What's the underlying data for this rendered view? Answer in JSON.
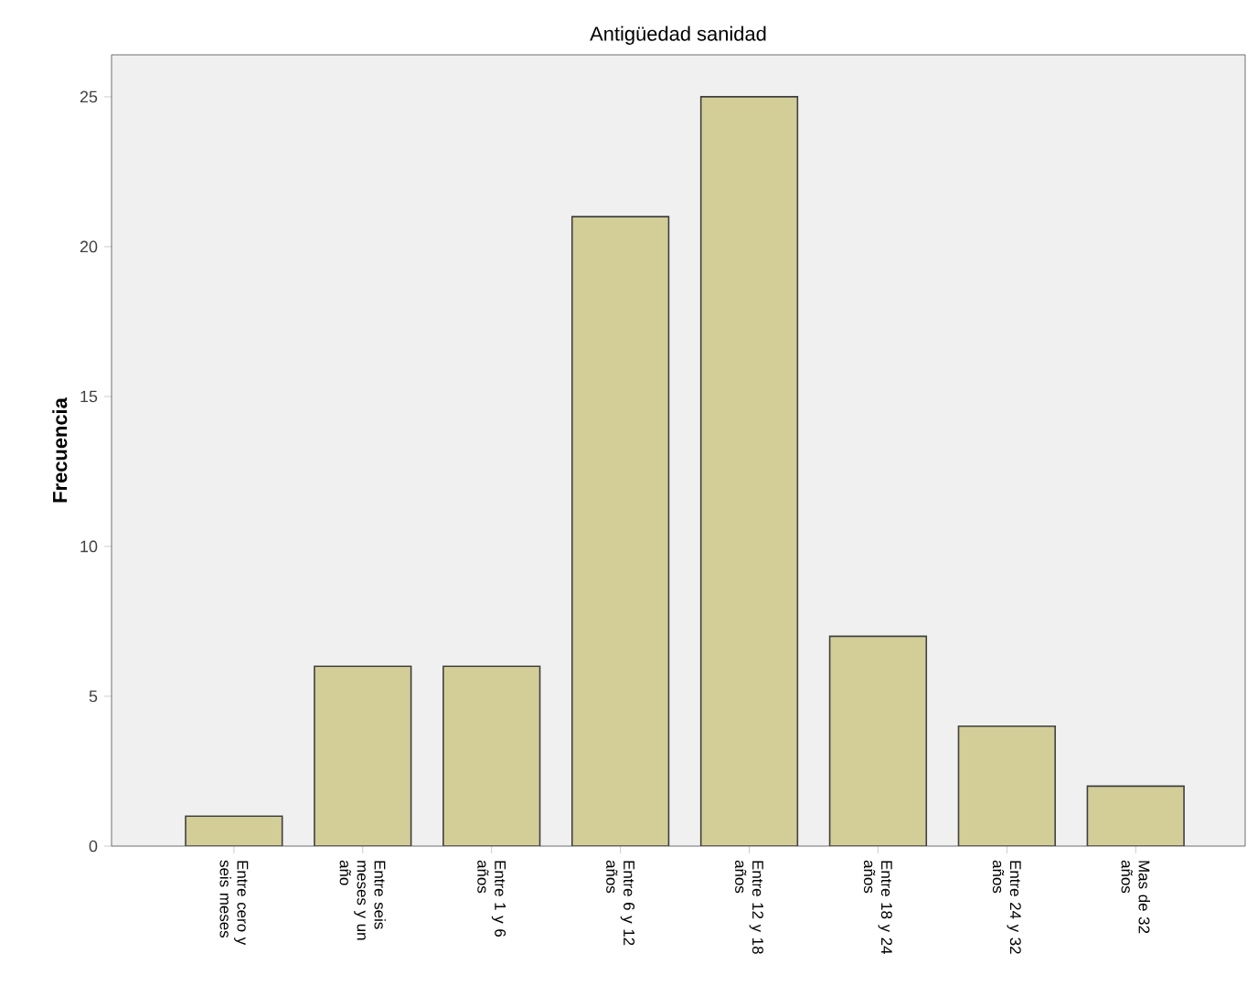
{
  "chart_data": {
    "type": "bar",
    "title": "Antigüedad sanidad",
    "ylabel": "Frecuencia",
    "categories": [
      "Entre cero y seis meses",
      "Entre seis meses y un año",
      "Entre 1 y 6 años",
      "Entre 6 y 12 años",
      "Entre 12 y 18 años",
      "Entre 18 y 24 años",
      "Entre 24 y 32 años",
      "Mas de 32 años"
    ],
    "values": [
      1,
      6,
      6,
      21,
      25,
      7,
      4,
      2
    ],
    "color": "#d3ce98",
    "ylim": [
      0,
      26.4
    ],
    "yticks": [
      0,
      5,
      10,
      15,
      20,
      25
    ]
  }
}
